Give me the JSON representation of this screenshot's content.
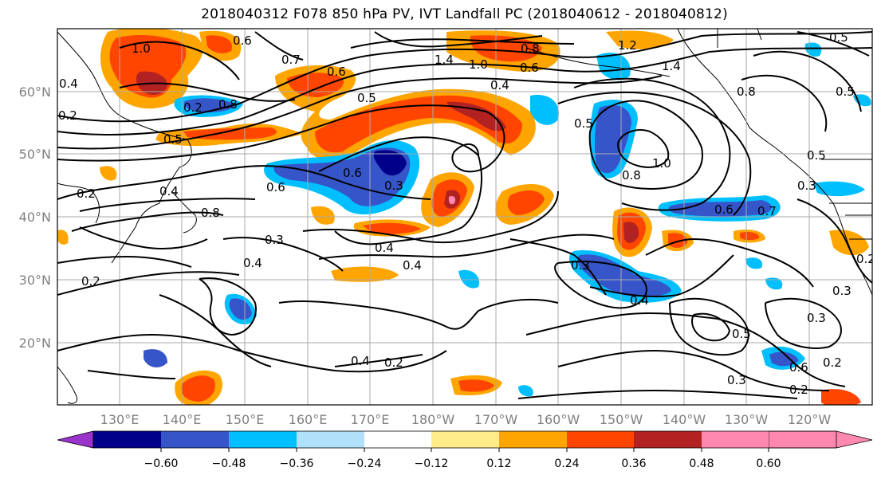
{
  "title": "2018040312 F078 850 hPa PV, IVT Landfall PC (2018040612 - 2018040812)",
  "lat_labels": [
    "60°N",
    "50°N",
    "40°N",
    "30°N",
    "20°N"
  ],
  "lon_labels": [
    "130°E",
    "140°E",
    "150°E",
    "160°E",
    "170°E",
    "180°W",
    "170°W",
    "160°W",
    "150°W",
    "140°W",
    "130°W",
    "120°W"
  ],
  "colorbar": {
    "ticks": [
      "−0.60",
      "−0.48",
      "−0.36",
      "−0.24",
      "−0.12",
      "0.12",
      "0.24",
      "0.36",
      "0.48",
      "0.60"
    ],
    "colors": [
      "#9933cc",
      "#00008b",
      "#3655c8",
      "#00bfff",
      "#b0e0fa",
      "#ffffff",
      "#ffeb8a",
      "#ffa500",
      "#ff4500",
      "#b22222",
      "#ff88b0"
    ]
  },
  "contour_labels": [
    "1.0",
    "0.6",
    "0.7",
    "0.6",
    "0.5",
    "0.8",
    "1.4",
    "1.0",
    "0.4",
    "0.8",
    "0.6",
    "1.2",
    "1.4",
    "0.5",
    "0.5",
    "0.8",
    "0.5",
    "0.6",
    "0.3",
    "0.6",
    "0.8",
    "1.0",
    "0.5",
    "0.3",
    "0.2",
    "0.4",
    "0.8",
    "0.6",
    "0.7",
    "0.3",
    "0.4",
    "0.4",
    "0.4",
    "0.3",
    "0.4",
    "0.2",
    "0.5",
    "0.3",
    "0.3",
    "0.2",
    "0.4",
    "0.2",
    "0.5",
    "0.6",
    "0.3",
    "0.2",
    "0.2",
    "0.4",
    "0.2",
    "0.2"
  ]
}
